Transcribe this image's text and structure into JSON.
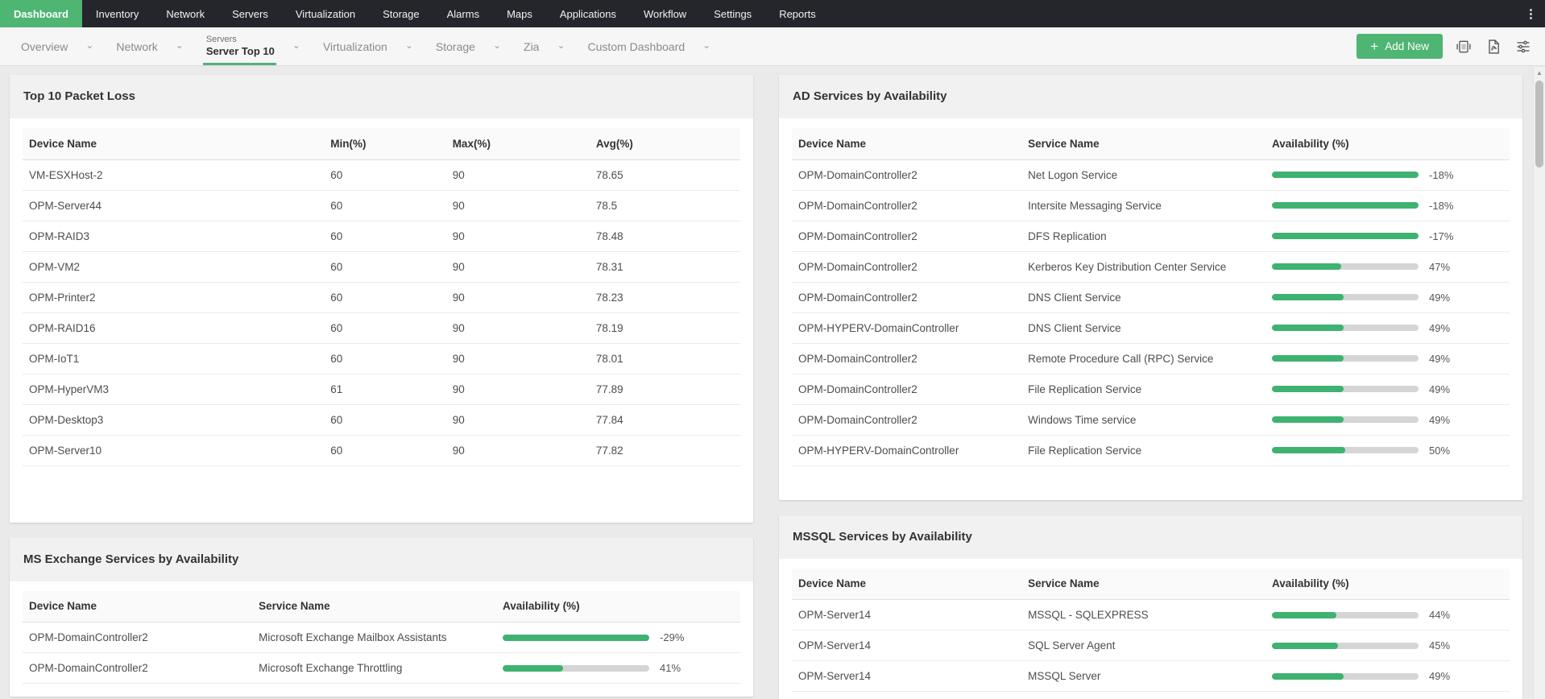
{
  "glyphs": {
    "chevron": "⌄",
    "kebab": "⋮",
    "plus": "+",
    "scroll_up": "▲"
  },
  "colors": {
    "accent_green": "#4eb573",
    "bar_green": "#3eb271",
    "bar_track": "#d5d5d5",
    "nav_bg": "#25262c"
  },
  "top_nav": {
    "items": [
      {
        "label": "Dashboard",
        "active": true
      },
      {
        "label": "Inventory"
      },
      {
        "label": "Network"
      },
      {
        "label": "Servers"
      },
      {
        "label": "Virtualization"
      },
      {
        "label": "Storage"
      },
      {
        "label": "Alarms"
      },
      {
        "label": "Maps"
      },
      {
        "label": "Applications"
      },
      {
        "label": "Workflow"
      },
      {
        "label": "Settings"
      },
      {
        "label": "Reports"
      }
    ]
  },
  "toolbar": {
    "tabs": [
      {
        "label": "Overview"
      },
      {
        "label": "Network"
      },
      {
        "sup": "Servers",
        "label": "Server Top 10",
        "active": true
      },
      {
        "label": "Virtualization"
      },
      {
        "label": "Storage"
      },
      {
        "label": "Zia"
      },
      {
        "label": "Custom Dashboard"
      }
    ],
    "add_new": {
      "label": "Add New"
    },
    "action_icons": [
      "slideshow-icon",
      "pdf-export-icon",
      "layout-settings-icon"
    ]
  },
  "panels": [
    {
      "id": "packet-loss",
      "slot": "left",
      "type": "metrics",
      "title": "Top 10 Packet Loss",
      "columns": [
        "Device Name",
        "Min(%)",
        "Max(%)",
        "Avg(%)"
      ],
      "rows": [
        {
          "device": "VM-ESXHost-2",
          "min": "60",
          "max": "90",
          "avg": "78.65"
        },
        {
          "device": "OPM-Server44",
          "min": "60",
          "max": "90",
          "avg": "78.5"
        },
        {
          "device": "OPM-RAID3",
          "min": "60",
          "max": "90",
          "avg": "78.48"
        },
        {
          "device": "OPM-VM2",
          "min": "60",
          "max": "90",
          "avg": "78.31"
        },
        {
          "device": "OPM-Printer2",
          "min": "60",
          "max": "90",
          "avg": "78.23"
        },
        {
          "device": "OPM-RAID16",
          "min": "60",
          "max": "90",
          "avg": "78.19"
        },
        {
          "device": "OPM-IoT1",
          "min": "60",
          "max": "90",
          "avg": "78.01"
        },
        {
          "device": "OPM-HyperVM3",
          "min": "61",
          "max": "90",
          "avg": "77.89"
        },
        {
          "device": "OPM-Desktop3",
          "min": "60",
          "max": "90",
          "avg": "77.84"
        },
        {
          "device": "OPM-Server10",
          "min": "60",
          "max": "90",
          "avg": "77.82"
        }
      ],
      "body_pad": "pad-xl"
    },
    {
      "id": "ad-services",
      "slot": "right",
      "type": "availability",
      "title": "AD Services by Availability",
      "columns": [
        "Device Name",
        "Service Name",
        "Availability (%)"
      ],
      "rows": [
        {
          "device": "OPM-DomainController2",
          "service": "Net Logon Service",
          "value": "-18%",
          "bar_pct": 100
        },
        {
          "device": "OPM-DomainController2",
          "service": "Intersite Messaging Service",
          "value": "-18%",
          "bar_pct": 100
        },
        {
          "device": "OPM-DomainController2",
          "service": "DFS Replication",
          "value": "-17%",
          "bar_pct": 100
        },
        {
          "device": "OPM-DomainController2",
          "service": "Kerberos Key Distribution Center Service",
          "value": "47%",
          "bar_pct": 47
        },
        {
          "device": "OPM-DomainController2",
          "service": "DNS Client Service",
          "value": "49%",
          "bar_pct": 49
        },
        {
          "device": "OPM-HYPERV-DomainController",
          "service": "DNS Client Service",
          "value": "49%",
          "bar_pct": 49
        },
        {
          "device": "OPM-DomainController2",
          "service": "Remote Procedure Call (RPC) Service",
          "value": "49%",
          "bar_pct": 49
        },
        {
          "device": "OPM-DomainController2",
          "service": "File Replication Service",
          "value": "49%",
          "bar_pct": 49
        },
        {
          "device": "OPM-DomainController2",
          "service": "Windows Time service",
          "value": "49%",
          "bar_pct": 49
        },
        {
          "device": "OPM-HYPERV-DomainController",
          "service": "File Replication Service",
          "value": "50%",
          "bar_pct": 50
        }
      ],
      "body_pad": "pad-lg"
    },
    {
      "id": "exchange-services",
      "slot": "left",
      "type": "availability",
      "title": "MS Exchange Services by Availability",
      "columns": [
        "Device Name",
        "Service Name",
        "Availability (%)"
      ],
      "rows": [
        {
          "device": "OPM-DomainController2",
          "service": "Microsoft Exchange Mailbox Assistants",
          "value": "-29%",
          "bar_pct": 100
        },
        {
          "device": "OPM-DomainController2",
          "service": "Microsoft Exchange Throttling",
          "value": "41%",
          "bar_pct": 41
        }
      ],
      "body_pad": ""
    },
    {
      "id": "mssql-services",
      "slot": "right",
      "type": "availability",
      "title": "MSSQL Services by Availability",
      "columns": [
        "Device Name",
        "Service Name",
        "Availability (%)"
      ],
      "rows": [
        {
          "device": "OPM-Server14",
          "service": "MSSQL - SQLEXPRESS",
          "value": "44%",
          "bar_pct": 44
        },
        {
          "device": "OPM-Server14",
          "service": "SQL Server Agent",
          "value": "45%",
          "bar_pct": 45
        },
        {
          "device": "OPM-Server14",
          "service": "MSSQL Server",
          "value": "49%",
          "bar_pct": 49
        }
      ],
      "body_pad": ""
    }
  ]
}
